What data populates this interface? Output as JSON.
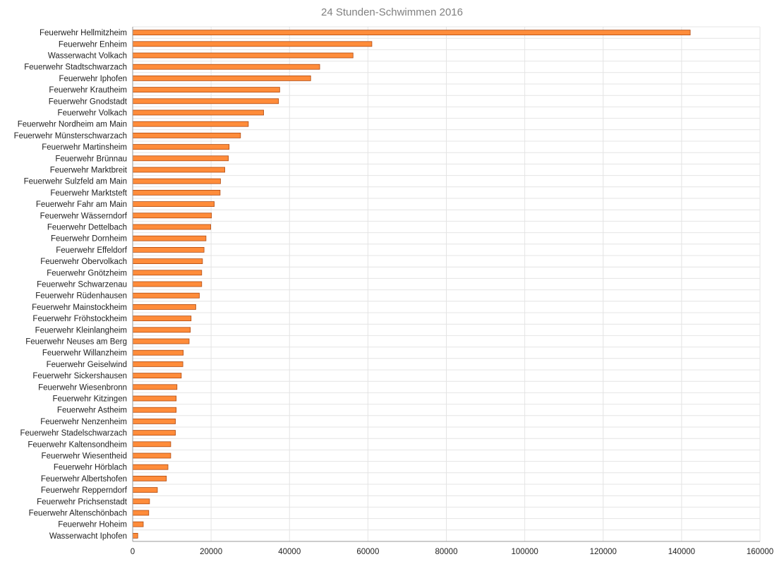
{
  "chart_data": {
    "type": "bar",
    "orientation": "horizontal",
    "title": "24 Stunden-Schwimmen 2016",
    "xlabel": "",
    "ylabel": "",
    "xlim": [
      0,
      160000
    ],
    "x_ticks": [
      "0",
      "20000",
      "40000",
      "60000",
      "80000",
      "100000",
      "120000",
      "140000",
      "160000"
    ],
    "grid": true,
    "legend": "none",
    "categories": [
      "Feuerwehr Hellmitzheim",
      "Feuerwehr Enheim",
      "Wasserwacht Volkach",
      "Feuerwehr Stadtschwarzach",
      "Feuerwehr Iphofen",
      "Feuerwehr Krautheim",
      "Feuerwehr Gnodstadt",
      "Feuerwehr Volkach",
      "Feuerwehr Nordheim am Main",
      "Feuerwehr Münsterschwarzach",
      "Feuerwehr Martinsheim",
      "Feuerwehr Brünnau",
      "Feuerwehr Marktbreit",
      "Feuerwehr Sulzfeld am Main",
      "Feuerwehr Marktsteft",
      "Feuerwehr Fahr am Main",
      "Feuerwehr Wässerndorf",
      "Feuerwehr Dettelbach",
      "Feuerwehr Dornheim",
      "Feuerwehr Effeldorf",
      "Feuerwehr Obervolkach",
      "Feuerwehr Gnötzheim",
      "Feuerwehr Schwarzenau",
      "Feuerwehr Rüdenhausen",
      "Feuerwehr Mainstockheim",
      "Feuerwehr Fröhstockheim",
      "Feuerwehr Kleinlangheim",
      "Feuerwehr Neuses am Berg",
      "Feuerwehr Willanzheim",
      "Feuerwehr Geiselwind",
      "Feuerwehr Sickershausen",
      "Feuerwehr Wiesenbronn",
      "Feuerwehr Kitzingen",
      "Feuerwehr Astheim",
      "Feuerwehr Nenzenheim",
      "Feuerwehr Stadelschwarzach",
      "Feuerwehr Kaltensondheim",
      "Feuerwehr Wiesentheid",
      "Feuerwehr Hörblach",
      "Feuerwehr Albertshofen",
      "Feuerwehr Repperndorf",
      "Feuerwehr Prichsenstadt",
      "Feuerwehr Altenschönbach",
      "Feuerwehr Hoheim",
      "Wasserwacht Iphofen"
    ],
    "values": [
      142200,
      61000,
      56200,
      47700,
      45400,
      37500,
      37200,
      33400,
      29500,
      27500,
      24600,
      24400,
      23500,
      22400,
      22300,
      20800,
      20100,
      19900,
      18700,
      18200,
      17800,
      17600,
      17600,
      17000,
      16100,
      14900,
      14700,
      14400,
      12900,
      12800,
      12400,
      11300,
      11100,
      11100,
      10900,
      10900,
      9700,
      9700,
      9000,
      8600,
      6300,
      4300,
      4100,
      2700,
      1300
    ],
    "colors": {
      "bar_fill": "#ff8c3a",
      "bar_stroke": "#b04a10",
      "grid": "#e4e4e4",
      "axis": "#999999"
    }
  }
}
